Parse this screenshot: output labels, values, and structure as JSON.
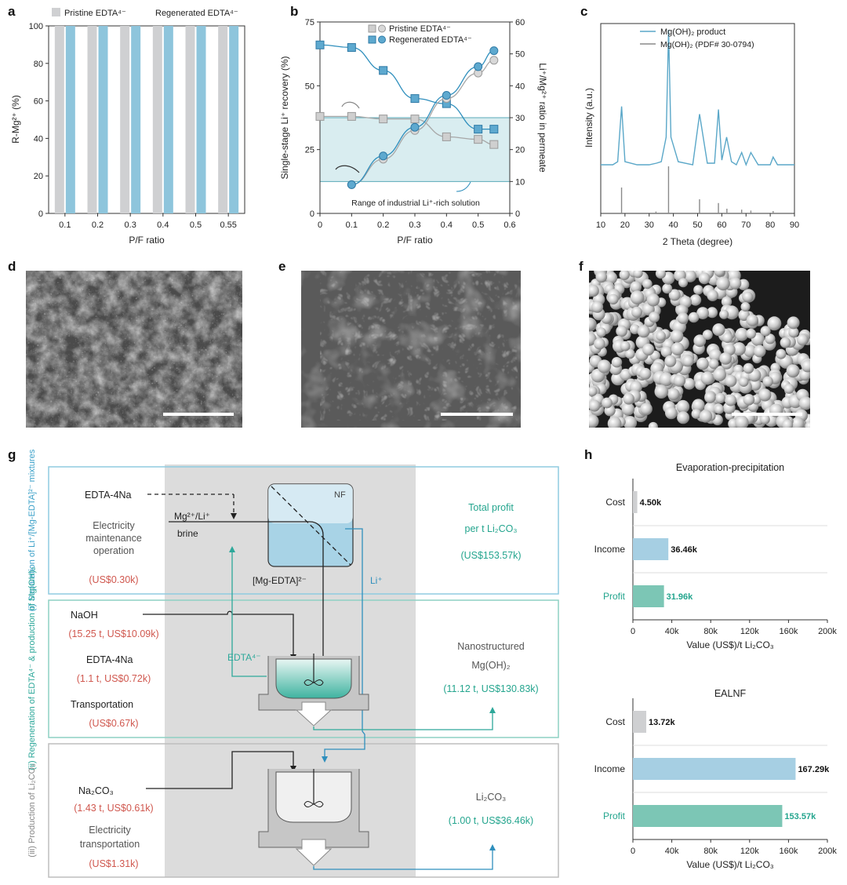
{
  "panel_labels": [
    "a",
    "b",
    "c",
    "d",
    "e",
    "f",
    "g",
    "h"
  ],
  "colors": {
    "pristine": "#cfd0d2",
    "regenerated": "#8ec5dc",
    "line_blue": "#2f8fbd",
    "line_gray": "#a7a7a7",
    "teal": "#2ea89a",
    "shade": "#cfe8ec",
    "red_text": "#d0584f",
    "teal_text": "#24a58e",
    "box_blue": "#8fcbe0",
    "box_green": "#8ed0c3",
    "gray_band": "#dcdcdc"
  },
  "chart_data": [
    {
      "id": "a",
      "type": "bar",
      "categories": [
        "0.1",
        "0.2",
        "0.3",
        "0.4",
        "0.5",
        "0.55"
      ],
      "series": [
        {
          "name": "Pristine EDTA⁴⁻",
          "values": [
            100,
            100,
            100,
            100,
            100,
            100
          ]
        },
        {
          "name": "Regenerated EDTA⁴⁻",
          "values": [
            100,
            100,
            100,
            100,
            100,
            100
          ]
        }
      ],
      "xlabel": "P/F ratio",
      "ylabel": "R-Mg²⁺ (%)",
      "ylim": [
        0,
        100
      ],
      "yticks": [
        0,
        20,
        40,
        60,
        80,
        100
      ],
      "legend": "top"
    },
    {
      "id": "b",
      "type": "line",
      "xlabel": "P/F ratio",
      "ylabel_left": "Single-stage Li⁺ recovery (%)",
      "ylabel_right": "Li⁺/Mg²⁺ ratio in permeate",
      "xlim": [
        0,
        0.6
      ],
      "xticks": [
        0,
        0.1,
        0.2,
        0.3,
        0.4,
        0.5,
        0.6
      ],
      "ylim_left": [
        0,
        75
      ],
      "yticks_left": [
        0,
        25,
        50,
        75
      ],
      "ylim_right": [
        0,
        60
      ],
      "yticks_right": [
        0,
        10,
        20,
        30,
        40,
        50,
        60
      ],
      "shaded_band_right": [
        10,
        30
      ],
      "annotation": "Range of industrial Li⁺-rich solution",
      "legend": "top",
      "series": [
        {
          "name": "Pristine EDTA⁴⁻",
          "marker": "square",
          "axis": "left",
          "x": [
            0,
            0.1,
            0.2,
            0.3,
            0.4,
            0.5,
            0.55
          ],
          "y": [
            38,
            38,
            37,
            37,
            30,
            29,
            27
          ]
        },
        {
          "name": "Regenerated EDTA⁴⁻",
          "marker": "square",
          "axis": "left",
          "x": [
            0,
            0.1,
            0.2,
            0.3,
            0.4,
            0.5,
            0.55
          ],
          "y": [
            66,
            65,
            56,
            45,
            43,
            33,
            33
          ]
        },
        {
          "name": "Pristine EDTA⁴⁻",
          "marker": "circle",
          "axis": "right",
          "x": [
            0.1,
            0.2,
            0.3,
            0.4,
            0.5,
            0.55
          ],
          "y": [
            9,
            17,
            26,
            36,
            44,
            48
          ]
        },
        {
          "name": "Regenerated EDTA⁴⁻",
          "marker": "circle",
          "axis": "right",
          "x": [
            0.1,
            0.2,
            0.3,
            0.4,
            0.5,
            0.55
          ],
          "y": [
            9,
            18,
            27,
            37,
            46,
            51
          ]
        }
      ]
    },
    {
      "id": "c",
      "type": "line",
      "xlabel": "2 Theta (degree)",
      "ylabel": "Intensity (a.u.)",
      "xlim": [
        10,
        90
      ],
      "xticks": [
        10,
        20,
        30,
        40,
        50,
        60,
        70,
        80,
        90
      ],
      "legend": "top-right",
      "series": [
        {
          "name": "Mg(OH)₂ product",
          "x": [
            10,
            15,
            17,
            18.6,
            20,
            25,
            30,
            33,
            35,
            37,
            38,
            39,
            42,
            48,
            50.8,
            54,
            57,
            58.6,
            60,
            62,
            64,
            66,
            68.2,
            70,
            72,
            75,
            80,
            81.2,
            83,
            90
          ],
          "y": [
            0.12,
            0.12,
            0.14,
            0.5,
            0.14,
            0.12,
            0.12,
            0.13,
            0.14,
            0.3,
            1.0,
            0.3,
            0.14,
            0.12,
            0.45,
            0.13,
            0.13,
            0.48,
            0.15,
            0.3,
            0.14,
            0.12,
            0.2,
            0.12,
            0.2,
            0.12,
            0.12,
            0.17,
            0.12,
            0.12
          ]
        },
        {
          "name": "Mg(OH)₂ (PDF# 30-0794)",
          "x": [
            18.6,
            32.8,
            38.0,
            50.8,
            58.6,
            62.1,
            68.2,
            72.0,
            81.2
          ],
          "y": [
            0.55,
            0.04,
            1.0,
            0.3,
            0.22,
            0.1,
            0.08,
            0.06,
            0.05
          ]
        }
      ]
    },
    {
      "id": "h1",
      "type": "bar",
      "title": "Evaporation-precipitation",
      "categories": [
        "Cost",
        "Income",
        "Profit"
      ],
      "values": [
        4.5,
        36.46,
        31.96
      ],
      "value_labels": [
        "4.50k",
        "36.46k",
        "31.96k"
      ],
      "xlabel": "Value (US$)/t Li₂CO₃",
      "xlim": [
        0,
        200
      ],
      "xtick_labels": [
        "0",
        "40k",
        "80k",
        "120k",
        "160k",
        "200k"
      ]
    },
    {
      "id": "h2",
      "type": "bar",
      "title": "EALNF",
      "categories": [
        "Cost",
        "Income",
        "Profit"
      ],
      "values": [
        13.72,
        167.29,
        153.57
      ],
      "value_labels": [
        "13.72k",
        "167.29k",
        "153.57k"
      ],
      "xlabel": "Value (US$)/t Li₂CO₃",
      "xlim": [
        0,
        200
      ],
      "xtick_labels": [
        "0",
        "40k",
        "80k",
        "120k",
        "160k",
        "200k"
      ]
    }
  ],
  "diagram": {
    "rows": [
      {
        "label": "(i) Separation of Li⁺/[Mg-EDTA]²⁻ mixtures",
        "left_items": [
          {
            "text": "EDTA-4Na",
            "color": "dark"
          },
          {
            "text": "Electricity",
            "color": "gray"
          },
          {
            "text": "maintenance",
            "color": "gray"
          },
          {
            "text": "operation",
            "color": "gray"
          },
          {
            "text": "(US$0.30k)",
            "color": "red"
          }
        ],
        "right_items": [
          {
            "text": "Total profit",
            "color": "teal"
          },
          {
            "text": "per t Li₂CO₃",
            "color": "teal"
          },
          {
            "text": "(US$153.57k)",
            "color": "teal"
          }
        ]
      },
      {
        "label": "(ii) Regeneration of EDTA⁴⁻ & production of Mg(OH)₂",
        "left_items": [
          {
            "text": "NaOH",
            "color": "dark"
          },
          {
            "text": "(15.25 t, US$10.09k)",
            "color": "red"
          },
          {
            "text": "EDTA-4Na",
            "color": "dark"
          },
          {
            "text": "(1.1 t, US$0.72k)",
            "color": "red"
          },
          {
            "text": "Transportation",
            "color": "dark"
          },
          {
            "text": "(US$0.67k)",
            "color": "red"
          }
        ],
        "right_items": [
          {
            "text": "Nanostructured",
            "color": "gray"
          },
          {
            "text": "Mg(OH)₂",
            "color": "gray"
          },
          {
            "text": "(11.12 t, US$130.83k)",
            "color": "teal"
          }
        ]
      },
      {
        "label": "(iii) Production of Li₂CO₃",
        "left_items": [
          {
            "text": "Na₂CO₃",
            "color": "dark"
          },
          {
            "text": "(1.43 t, US$0.61k)",
            "color": "red"
          },
          {
            "text": "Electricity",
            "color": "gray"
          },
          {
            "text": "transportation",
            "color": "gray"
          },
          {
            "text": "(US$1.31k)",
            "color": "red"
          }
        ],
        "right_items": [
          {
            "text": "Li₂CO₃",
            "color": "gray"
          },
          {
            "text": "(1.00 t, US$36.46k)",
            "color": "teal"
          }
        ]
      }
    ],
    "labels": {
      "nf": "NF",
      "feed": "Mg²⁺/Li⁺",
      "brine": "brine",
      "retentate": "[Mg-EDTA]²⁻",
      "permeate": "Li⁺",
      "recycle": "EDTA⁴⁻"
    }
  }
}
